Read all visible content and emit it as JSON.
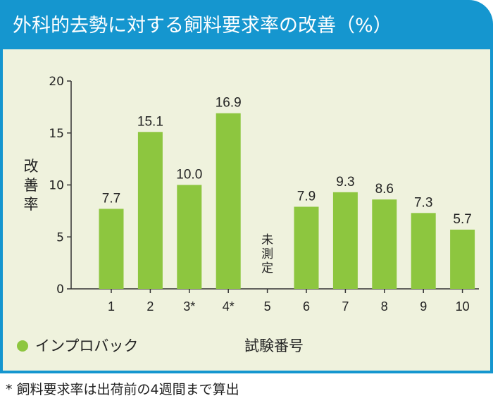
{
  "title": "外科的去勢に対する飼料要求率の改善（%）",
  "footnote": "* 飼料要求率は出荷前の4週間まで算出",
  "colors": {
    "header": "#1596cf",
    "panel_bg": "#eff2dd",
    "bar": "#8dc63f",
    "axis": "#333333"
  },
  "chart_data": {
    "type": "bar",
    "title": "外科的去勢に対する飼料要求率の改善（%）",
    "xlabel": "試験番号",
    "ylabel": "改善率",
    "ylim": [
      0,
      20
    ],
    "yticks": [
      0,
      5,
      10,
      15,
      20
    ],
    "categories": [
      "1",
      "2",
      "3*",
      "4*",
      "5",
      "6",
      "7",
      "8",
      "9",
      "10"
    ],
    "series": [
      {
        "name": "インプロバック",
        "values": [
          7.7,
          15.1,
          10.0,
          16.9,
          null,
          7.9,
          9.3,
          8.6,
          7.3,
          5.7
        ],
        "labels": [
          "7.7",
          "15.1",
          "10.0",
          "16.9",
          "",
          "7.9",
          "9.3",
          "8.6",
          "7.3",
          "5.7"
        ]
      }
    ],
    "annotations": [
      {
        "category": "5",
        "text": "未測定"
      }
    ],
    "legend": {
      "position": "bottom-left",
      "entries": [
        "インプロバック"
      ]
    },
    "grid": false
  }
}
